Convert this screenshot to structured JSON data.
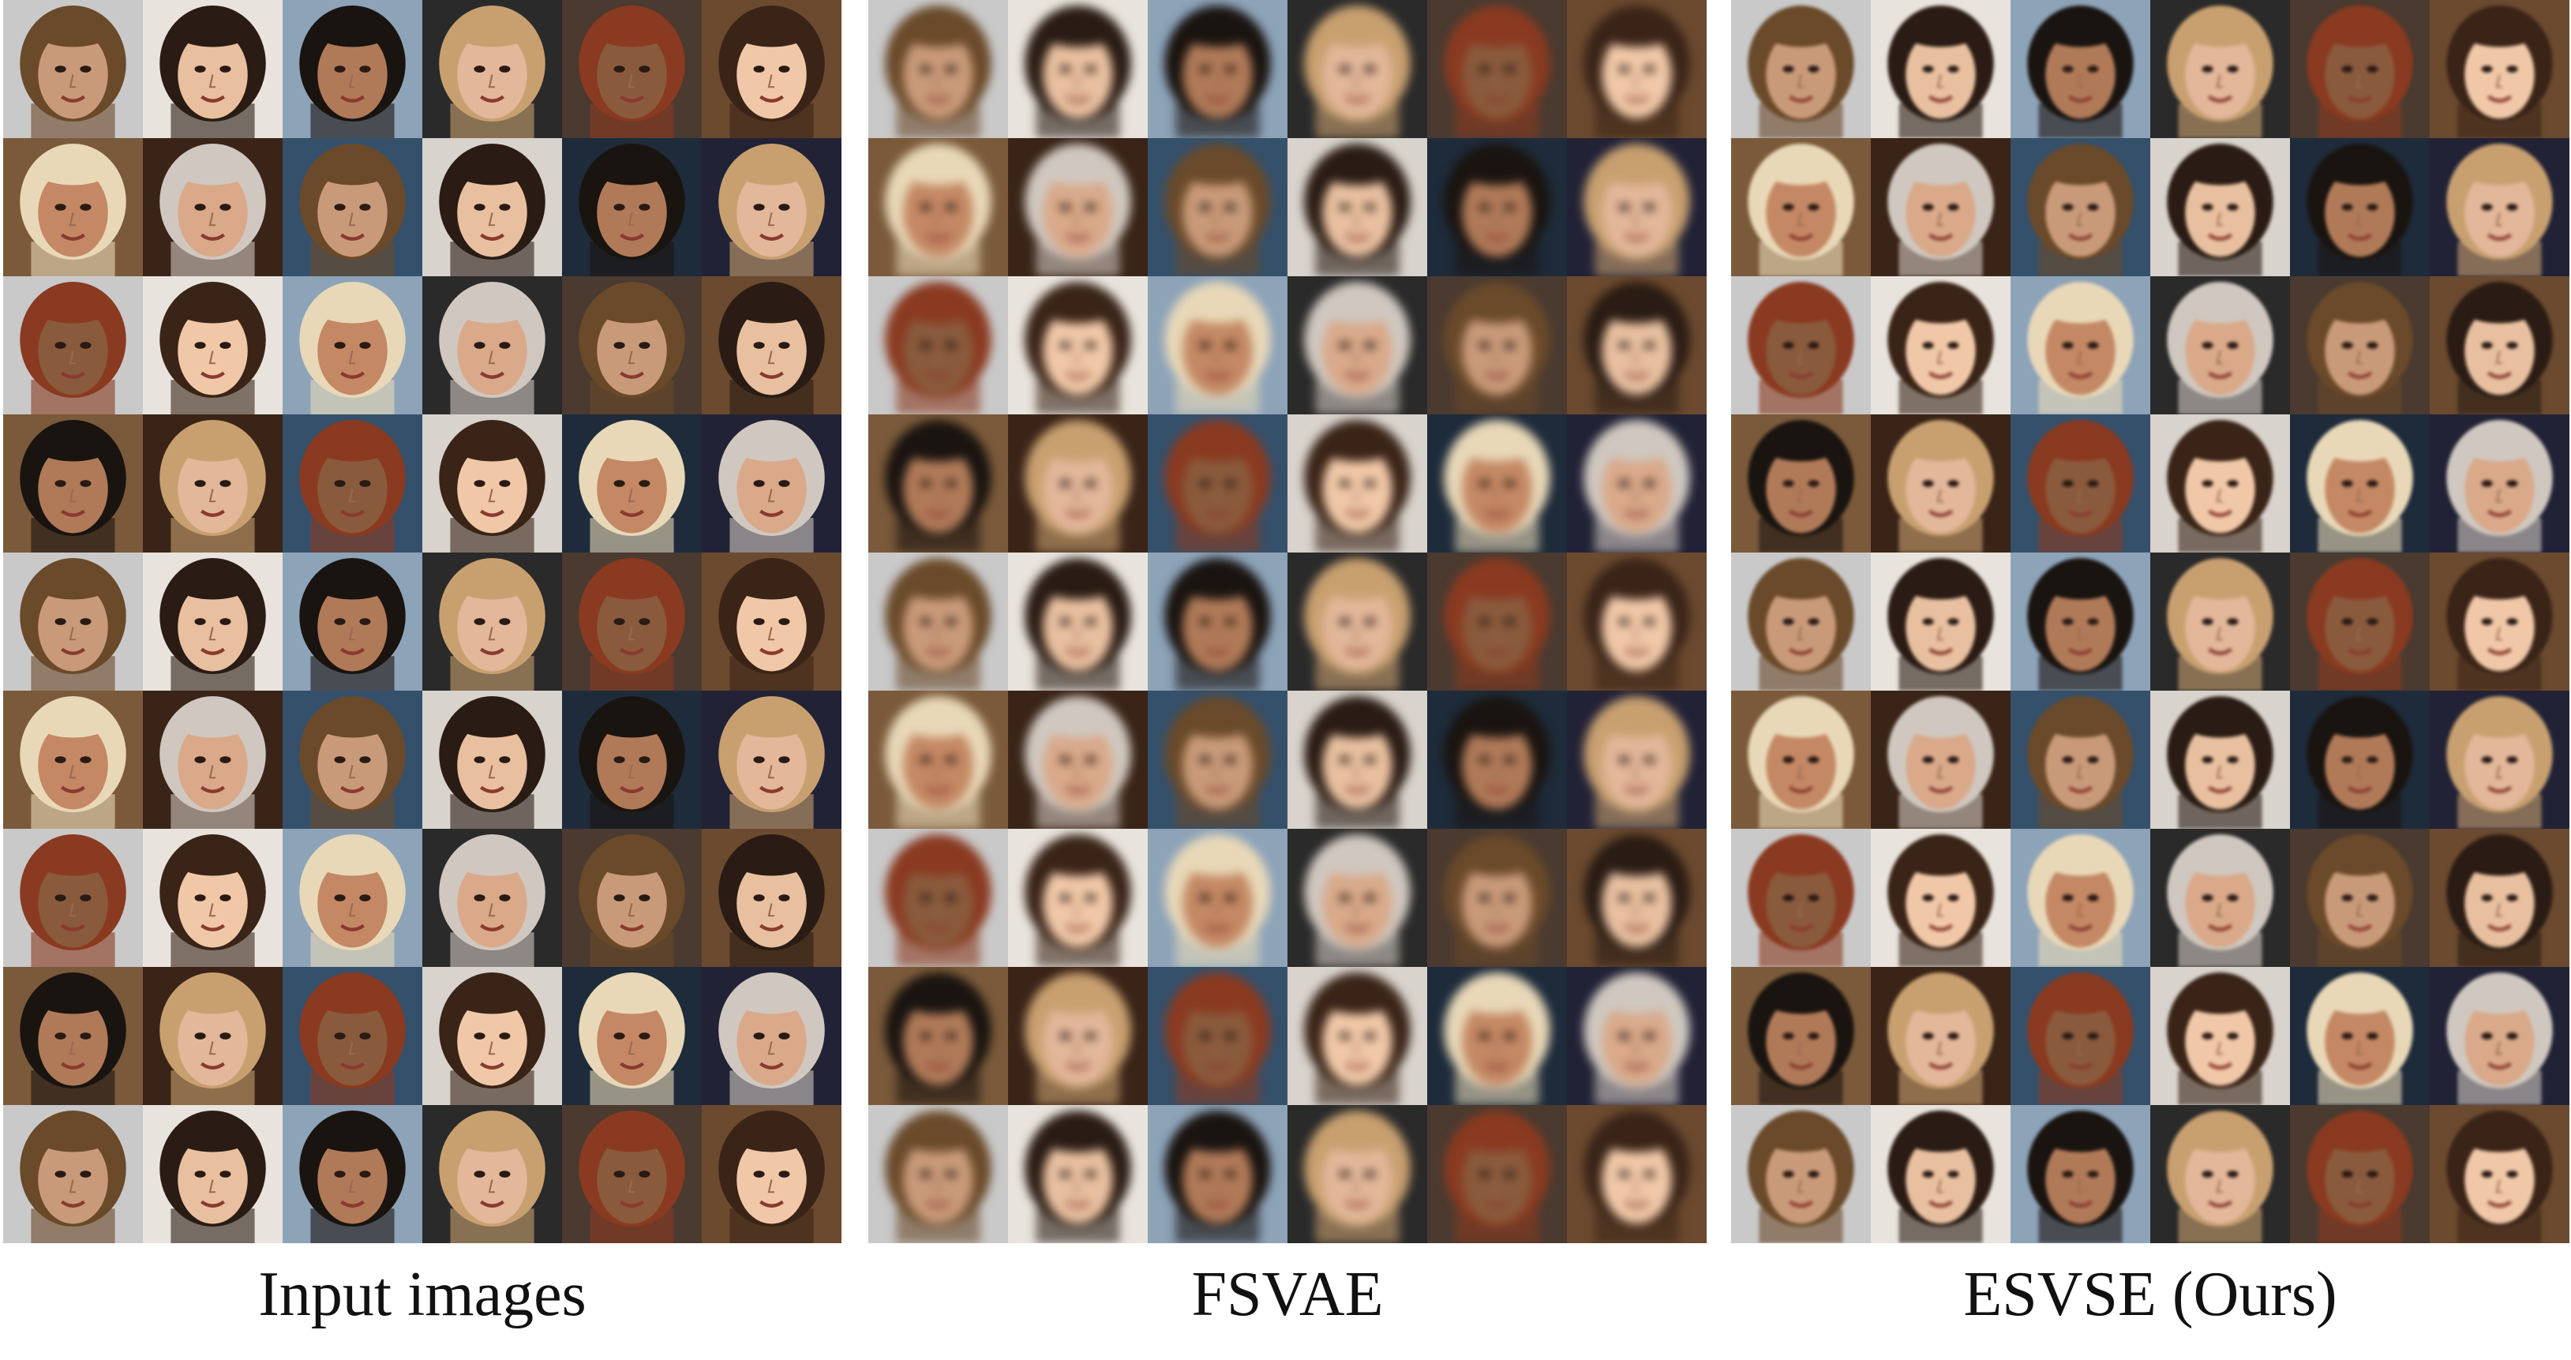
{
  "captions": [
    "Input images",
    "FSVAE",
    "ESVSE  (Ours)"
  ],
  "grid": {
    "rows": 9,
    "cols": 6
  },
  "palette": {
    "backgrounds": [
      "#2a2a2a",
      "#1e2b3a",
      "#6b4a2f",
      "#c9c9c9",
      "#3a2418",
      "#8da3b8",
      "#d8d3cc",
      "#4a3a30",
      "#222236",
      "#7a5a3a",
      "#e8e4dd",
      "#35506a"
    ],
    "skins": [
      "#e2b79a",
      "#c99a7a",
      "#f0c8a8",
      "#b07a58",
      "#d9a98a",
      "#8a5a3c",
      "#e8c0a0",
      "#c48864"
    ],
    "hair": [
      "#1a1410",
      "#3a2418",
      "#6a4a2a",
      "#c8a070",
      "#e8d8b8",
      "#2a1c14",
      "#8a3a20",
      "#d0c8c0"
    ]
  }
}
